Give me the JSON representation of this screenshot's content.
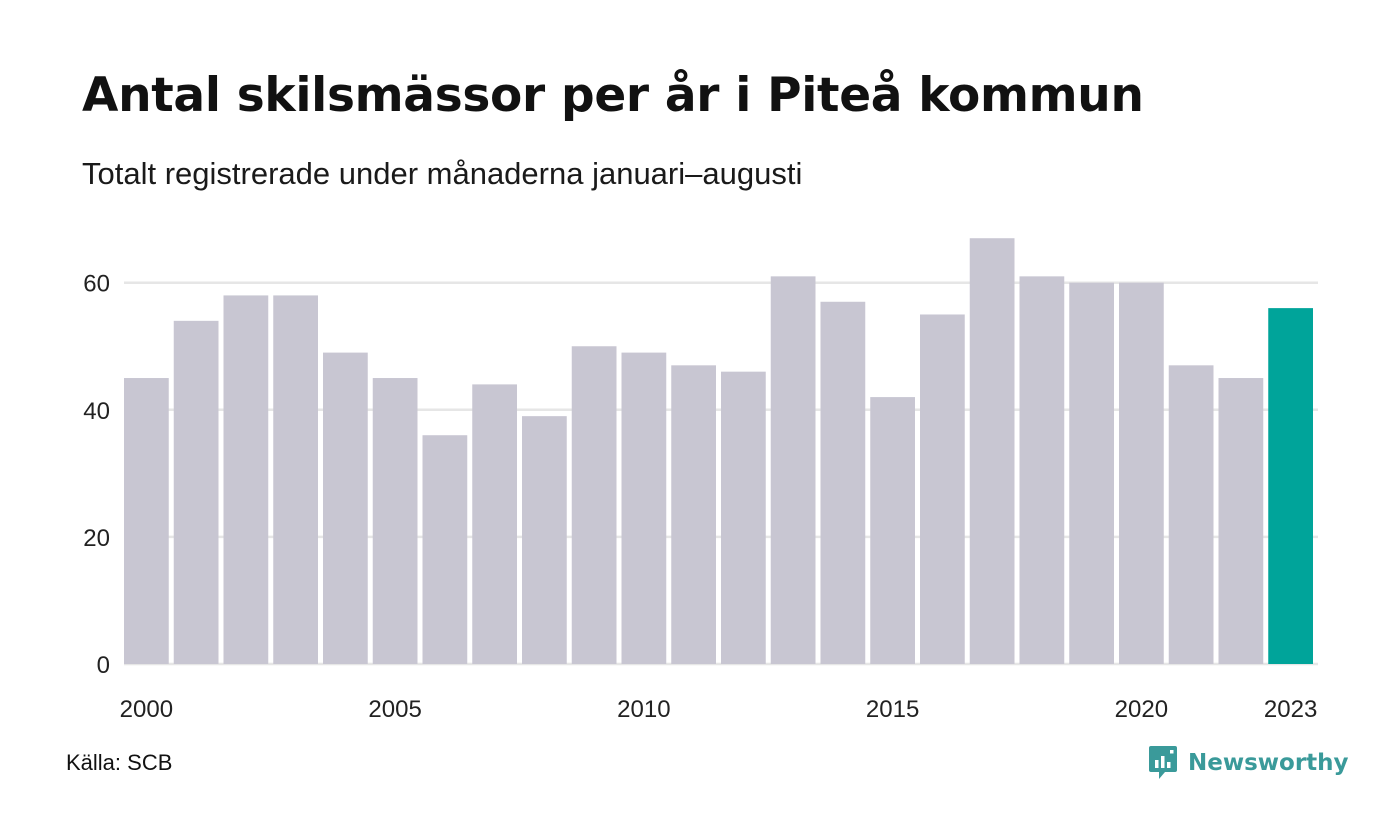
{
  "header": {
    "title": "Antal skilsmässor per år i Piteå kommun",
    "subtitle": "Totalt registrerade under månaderna januari–augusti"
  },
  "footer": {
    "source": "Källa: SCB",
    "brand_name": "Newsworthy",
    "brand_icon": "bar-chart-speech-bubble-icon"
  },
  "colors": {
    "bar": "#c8c6d2",
    "highlight": "#00a49a",
    "grid": "#e6e6e6",
    "brand": "#3a9a9a"
  },
  "chart_data": {
    "type": "bar",
    "categories": [
      "2000",
      "2001",
      "2002",
      "2003",
      "2004",
      "2005",
      "2006",
      "2007",
      "2008",
      "2009",
      "2010",
      "2011",
      "2012",
      "2013",
      "2014",
      "2015",
      "2016",
      "2017",
      "2018",
      "2019",
      "2020",
      "2021",
      "2022",
      "2023"
    ],
    "values": [
      45,
      54,
      58,
      58,
      49,
      45,
      36,
      44,
      39,
      50,
      49,
      47,
      46,
      61,
      57,
      42,
      55,
      67,
      61,
      60,
      60,
      47,
      45,
      56
    ],
    "highlight_category": "2023",
    "x_tick_labels": [
      "2000",
      "2005",
      "2010",
      "2015",
      "2020",
      "2023"
    ],
    "y_ticks": [
      0,
      20,
      40,
      60
    ],
    "ylim": [
      0,
      67
    ],
    "grid": "horizontal",
    "xlabel": "",
    "ylabel": ""
  }
}
